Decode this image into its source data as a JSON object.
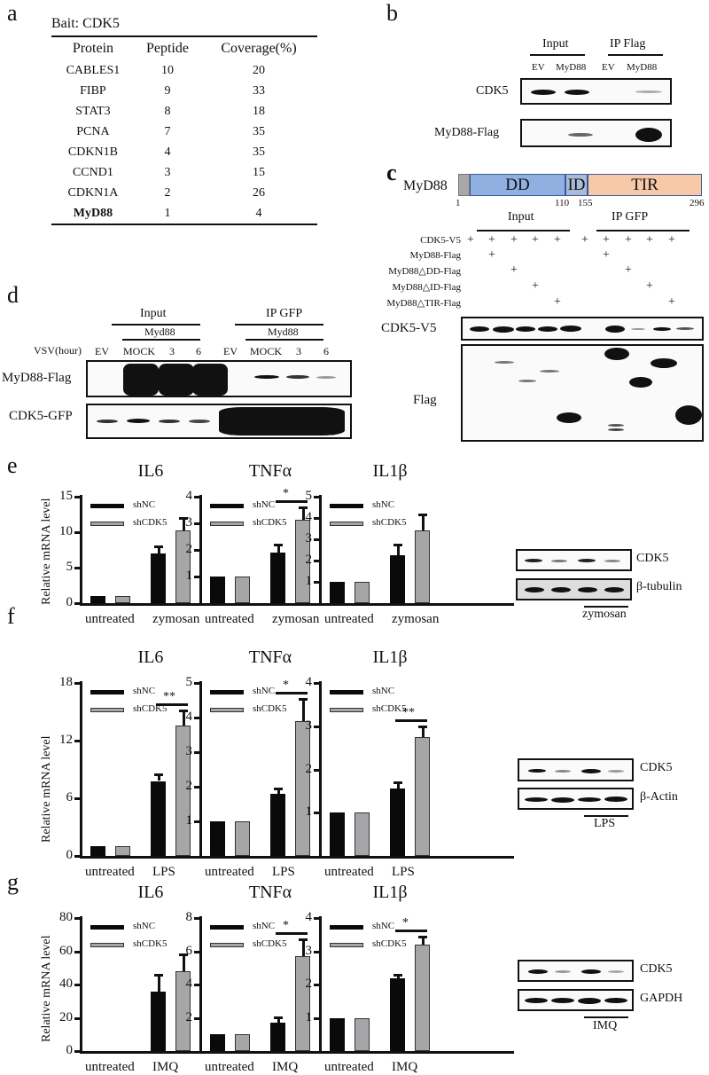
{
  "panels": {
    "a": {
      "label": "a",
      "bait": "Bait: CDK5",
      "columns": [
        "Protein",
        "Peptide",
        "Coverage(%)"
      ],
      "rows": [
        {
          "protein": "CABLES1",
          "peptide": "10",
          "coverage": "20"
        },
        {
          "protein": "FIBP",
          "peptide": "9",
          "coverage": "33"
        },
        {
          "protein": "STAT3",
          "peptide": "8",
          "coverage": "18"
        },
        {
          "protein": "PCNA",
          "peptide": "7",
          "coverage": "35"
        },
        {
          "protein": "CDKN1B",
          "peptide": "4",
          "coverage": "35"
        },
        {
          "protein": "CCND1",
          "peptide": "3",
          "coverage": "15"
        },
        {
          "protein": "CDKN1A",
          "peptide": "2",
          "coverage": "26"
        },
        {
          "protein": "MyD88",
          "peptide": "1",
          "coverage": "4"
        }
      ]
    },
    "b": {
      "label": "b",
      "groups": [
        "Input",
        "IP Flag"
      ],
      "lanes": [
        "EV",
        "MyD88",
        "EV",
        "MyD88"
      ],
      "blots": [
        "CDK5",
        "MyD88-Flag"
      ]
    },
    "c": {
      "label": "c",
      "protein": "MyD88",
      "domains": [
        {
          "name": "",
          "start": "1"
        },
        {
          "name": "DD",
          "end": "110"
        },
        {
          "name": "ID",
          "end": "155"
        },
        {
          "name": "TIR",
          "end": "296"
        }
      ],
      "positions": [
        "1",
        "110",
        "155",
        "296"
      ],
      "groups": [
        "Input",
        "IP GFP"
      ],
      "conditions": [
        {
          "name": "CDK5-V5",
          "marks": [
            "+",
            "+",
            "+",
            "+",
            "+",
            "+",
            "+",
            "+",
            "+",
            "+"
          ]
        },
        {
          "name": "MyD88-Flag",
          "marks": [
            "",
            "+",
            "",
            "",
            "",
            "",
            "+",
            "",
            "",
            ""
          ]
        },
        {
          "name": "MyD88△DD-Flag",
          "marks": [
            "",
            "",
            "+",
            "",
            "",
            "",
            "",
            "+",
            "",
            ""
          ]
        },
        {
          "name": "MyD88△ID-Flag",
          "marks": [
            "",
            "",
            "",
            "+",
            "",
            "",
            "",
            "",
            "+",
            ""
          ]
        },
        {
          "name": "MyD88△TIR-Flag",
          "marks": [
            "",
            "",
            "",
            "",
            "+",
            "",
            "",
            "",
            "",
            "+"
          ]
        }
      ],
      "blots": [
        "CDK5-V5",
        "Flag"
      ]
    },
    "d": {
      "label": "d",
      "groups": [
        "Input",
        "IP GFP"
      ],
      "subgroup": "Myd88",
      "row_label": "VSV(hour)",
      "lanes": [
        "EV",
        "MOCK",
        "3",
        "6",
        "EV",
        "MOCK",
        "3",
        "6"
      ],
      "blots": [
        "MyD88-Flag",
        "CDK5-GFP"
      ]
    },
    "e": {
      "label": "e",
      "blot_labels": [
        "CDK5",
        "β-tubulin"
      ],
      "treatment": "zymosan"
    },
    "f": {
      "label": "f",
      "blot_labels": [
        "CDK5",
        "β-Actin"
      ],
      "treatment": "LPS"
    },
    "g": {
      "label": "g",
      "blot_labels": [
        "CDK5",
        "GAPDH"
      ],
      "treatment": "IMQ"
    }
  },
  "ylabel": "Relative mRNA level",
  "legend": {
    "nc": "shNC",
    "cdk": "shCDK5"
  },
  "colors": {
    "shNC": "#0a0a0a",
    "shCDK5": "#a6a6a8",
    "TIR": "#f8c9a8",
    "DD": "#8fb0e0",
    "ID": "#aabbd8"
  },
  "chart_data": [
    {
      "type": "bar",
      "panel": "e",
      "title": "IL6",
      "categories": [
        "untreated",
        "zymosan"
      ],
      "ylim": [
        0,
        15
      ],
      "yticks": [
        "0",
        "5",
        "10",
        "15"
      ],
      "series": [
        {
          "name": "shNC",
          "values": [
            1,
            7
          ],
          "err": [
            0,
            1
          ]
        },
        {
          "name": "shCDK5",
          "values": [
            1,
            10.2
          ],
          "err": [
            0,
            1.8
          ]
        }
      ],
      "sig": ""
    },
    {
      "type": "bar",
      "panel": "e",
      "title": "TNFα",
      "categories": [
        "untreated",
        "zymosan"
      ],
      "ylim": [
        0,
        4
      ],
      "yticks": [
        "1",
        "2",
        "3",
        "4"
      ],
      "series": [
        {
          "name": "shNC",
          "values": [
            1,
            1.9
          ],
          "err": [
            0,
            0.3
          ]
        },
        {
          "name": "shCDK5",
          "values": [
            1,
            3.15
          ],
          "err": [
            0,
            0.45
          ]
        }
      ],
      "sig": "*"
    },
    {
      "type": "bar",
      "panel": "e",
      "title": "IL1β",
      "categories": [
        "untreated",
        "zymosan"
      ],
      "ylim": [
        0,
        5
      ],
      "yticks": [
        "1",
        "2",
        "3",
        "4",
        "5"
      ],
      "series": [
        {
          "name": "shNC",
          "values": [
            1,
            2.25
          ],
          "err": [
            0,
            0.5
          ]
        },
        {
          "name": "shCDK5",
          "values": [
            1,
            3.4
          ],
          "err": [
            0,
            0.75
          ]
        }
      ],
      "sig": ""
    },
    {
      "type": "bar",
      "panel": "f",
      "title": "IL6",
      "categories": [
        "untreated",
        "LPS"
      ],
      "ylim": [
        0,
        18
      ],
      "yticks": [
        "0",
        "6",
        "12",
        "18"
      ],
      "series": [
        {
          "name": "shNC",
          "values": [
            1,
            7.8
          ],
          "err": [
            0,
            0.7
          ]
        },
        {
          "name": "shCDK5",
          "values": [
            1,
            13.6
          ],
          "err": [
            0,
            1.5
          ]
        }
      ],
      "sig": "**"
    },
    {
      "type": "bar",
      "panel": "f",
      "title": "TNFα",
      "categories": [
        "untreated",
        "LPS"
      ],
      "ylim": [
        0,
        5
      ],
      "yticks": [
        "1",
        "2",
        "3",
        "4",
        "5"
      ],
      "series": [
        {
          "name": "shNC",
          "values": [
            1,
            1.8
          ],
          "err": [
            0,
            0.15
          ]
        },
        {
          "name": "shCDK5",
          "values": [
            1,
            3.9
          ],
          "err": [
            0,
            0.65
          ]
        }
      ],
      "sig": "*"
    },
    {
      "type": "bar",
      "panel": "f",
      "title": "IL1β",
      "categories": [
        "untreated",
        "LPS"
      ],
      "ylim": [
        0,
        4
      ],
      "yticks": [
        "1",
        "2",
        "3",
        "4"
      ],
      "series": [
        {
          "name": "shNC",
          "values": [
            1,
            1.55
          ],
          "err": [
            0,
            0.15
          ]
        },
        {
          "name": "shCDK5",
          "values": [
            1,
            2.75
          ],
          "err": [
            0,
            0.25
          ]
        }
      ],
      "sig": "**"
    },
    {
      "type": "bar",
      "panel": "g",
      "title": "IL6",
      "categories": [
        "untreated",
        "IMQ"
      ],
      "ylim": [
        0,
        80
      ],
      "yticks": [
        "0",
        "20",
        "40",
        "60",
        "80"
      ],
      "series": [
        {
          "name": "shNC",
          "values": [
            0,
            36
          ],
          "err": [
            0,
            10
          ]
        },
        {
          "name": "shCDK5",
          "values": [
            0,
            48
          ],
          "err": [
            0,
            10
          ]
        }
      ],
      "sig": ""
    },
    {
      "type": "bar",
      "panel": "g",
      "title": "TNFα",
      "categories": [
        "untreated",
        "IMQ"
      ],
      "ylim": [
        0,
        8
      ],
      "yticks": [
        "2",
        "4",
        "6",
        "8"
      ],
      "series": [
        {
          "name": "shNC",
          "values": [
            1,
            1.7
          ],
          "err": [
            0,
            0.35
          ]
        },
        {
          "name": "shCDK5",
          "values": [
            1,
            5.7
          ],
          "err": [
            0,
            1.0
          ]
        }
      ],
      "sig": "*"
    },
    {
      "type": "bar",
      "panel": "g",
      "title": "IL1β",
      "categories": [
        "untreated",
        "IMQ"
      ],
      "ylim": [
        0,
        4
      ],
      "yticks": [
        "1",
        "2",
        "3",
        "4"
      ],
      "series": [
        {
          "name": "shNC",
          "values": [
            1,
            2.2
          ],
          "err": [
            0,
            0.1
          ]
        },
        {
          "name": "shCDK5",
          "values": [
            1,
            3.2
          ],
          "err": [
            0,
            0.25
          ]
        }
      ],
      "sig": "*"
    }
  ]
}
